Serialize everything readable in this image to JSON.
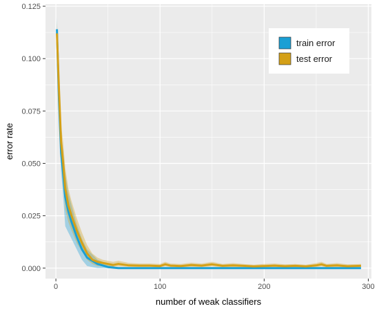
{
  "chart_data": {
    "type": "line",
    "title": "",
    "xlabel": "number of weak classifiers",
    "ylabel": "error rate",
    "xlim": [
      -10,
      303
    ],
    "ylim": [
      -0.005,
      0.126
    ],
    "x_ticks": [
      0,
      100,
      200,
      300
    ],
    "x_tick_labels": [
      "0",
      "100",
      "200",
      "300"
    ],
    "y_ticks": [
      0.0,
      0.025,
      0.05,
      0.075,
      0.1,
      0.125
    ],
    "y_tick_labels": [
      "0.000",
      "0.025",
      "0.050",
      "0.075",
      "0.100",
      "0.125"
    ],
    "grid": true,
    "legend_position": "top-right",
    "series": [
      {
        "name": "train error",
        "color": "#1a9fd4",
        "x": [
          1,
          3,
          5,
          7,
          9,
          12,
          15,
          20,
          25,
          30,
          40,
          50,
          60,
          80,
          100,
          150,
          200,
          250,
          293
        ],
        "y": [
          0.114,
          0.08,
          0.055,
          0.045,
          0.034,
          0.027,
          0.022,
          0.015,
          0.009,
          0.005,
          0.002,
          0.0005,
          0.0,
          0.0,
          0.0,
          0.0,
          0.0,
          0.0,
          0.0
        ],
        "lower": [
          0.108,
          0.072,
          0.046,
          0.034,
          0.02,
          0.017,
          0.014,
          0.009,
          0.004,
          0.001,
          0.0,
          0.0,
          0.0,
          0.0,
          0.0,
          0.0,
          0.0,
          0.0,
          0.0
        ],
        "upper": [
          0.12,
          0.088,
          0.064,
          0.056,
          0.045,
          0.036,
          0.03,
          0.021,
          0.014,
          0.009,
          0.004,
          0.002,
          0.0,
          0.0,
          0.0,
          0.0,
          0.0,
          0.0,
          0.0
        ]
      },
      {
        "name": "test error",
        "color": "#d4a017",
        "x": [
          1,
          3,
          5,
          7,
          9,
          12,
          15,
          20,
          25,
          30,
          35,
          40,
          45,
          50,
          55,
          60,
          70,
          80,
          90,
          100,
          105,
          110,
          120,
          130,
          140,
          150,
          160,
          170,
          180,
          190,
          200,
          210,
          220,
          230,
          240,
          250,
          255,
          260,
          270,
          280,
          293
        ],
        "y": [
          0.112,
          0.085,
          0.06,
          0.05,
          0.038,
          0.03,
          0.025,
          0.018,
          0.012,
          0.007,
          0.004,
          0.003,
          0.0025,
          0.002,
          0.0015,
          0.002,
          0.0013,
          0.0012,
          0.0012,
          0.001,
          0.0018,
          0.0012,
          0.001,
          0.0015,
          0.0012,
          0.0018,
          0.0011,
          0.0013,
          0.0011,
          0.0008,
          0.001,
          0.0012,
          0.0009,
          0.0011,
          0.0008,
          0.0013,
          0.0018,
          0.0011,
          0.0013,
          0.0009,
          0.0011
        ],
        "lower": [
          0.106,
          0.078,
          0.052,
          0.04,
          0.028,
          0.022,
          0.018,
          0.012,
          0.008,
          0.004,
          0.002,
          0.001,
          0.001,
          0.0008,
          0.0006,
          0.0008,
          0.0006,
          0.0005,
          0.0005,
          0.0004,
          0.0008,
          0.0005,
          0.0004,
          0.0006,
          0.0005,
          0.0008,
          0.0004,
          0.0005,
          0.0004,
          0.0003,
          0.0004,
          0.0005,
          0.0003,
          0.0004,
          0.0003,
          0.0005,
          0.0008,
          0.0004,
          0.0005,
          0.0003,
          0.0004
        ],
        "upper": [
          0.118,
          0.092,
          0.068,
          0.06,
          0.048,
          0.038,
          0.032,
          0.024,
          0.017,
          0.011,
          0.007,
          0.005,
          0.004,
          0.0035,
          0.003,
          0.0035,
          0.0025,
          0.0022,
          0.0022,
          0.002,
          0.003,
          0.0022,
          0.002,
          0.0026,
          0.0022,
          0.003,
          0.002,
          0.0024,
          0.002,
          0.0016,
          0.002,
          0.0022,
          0.0018,
          0.002,
          0.0016,
          0.0024,
          0.003,
          0.002,
          0.0024,
          0.0018,
          0.002
        ]
      }
    ]
  }
}
